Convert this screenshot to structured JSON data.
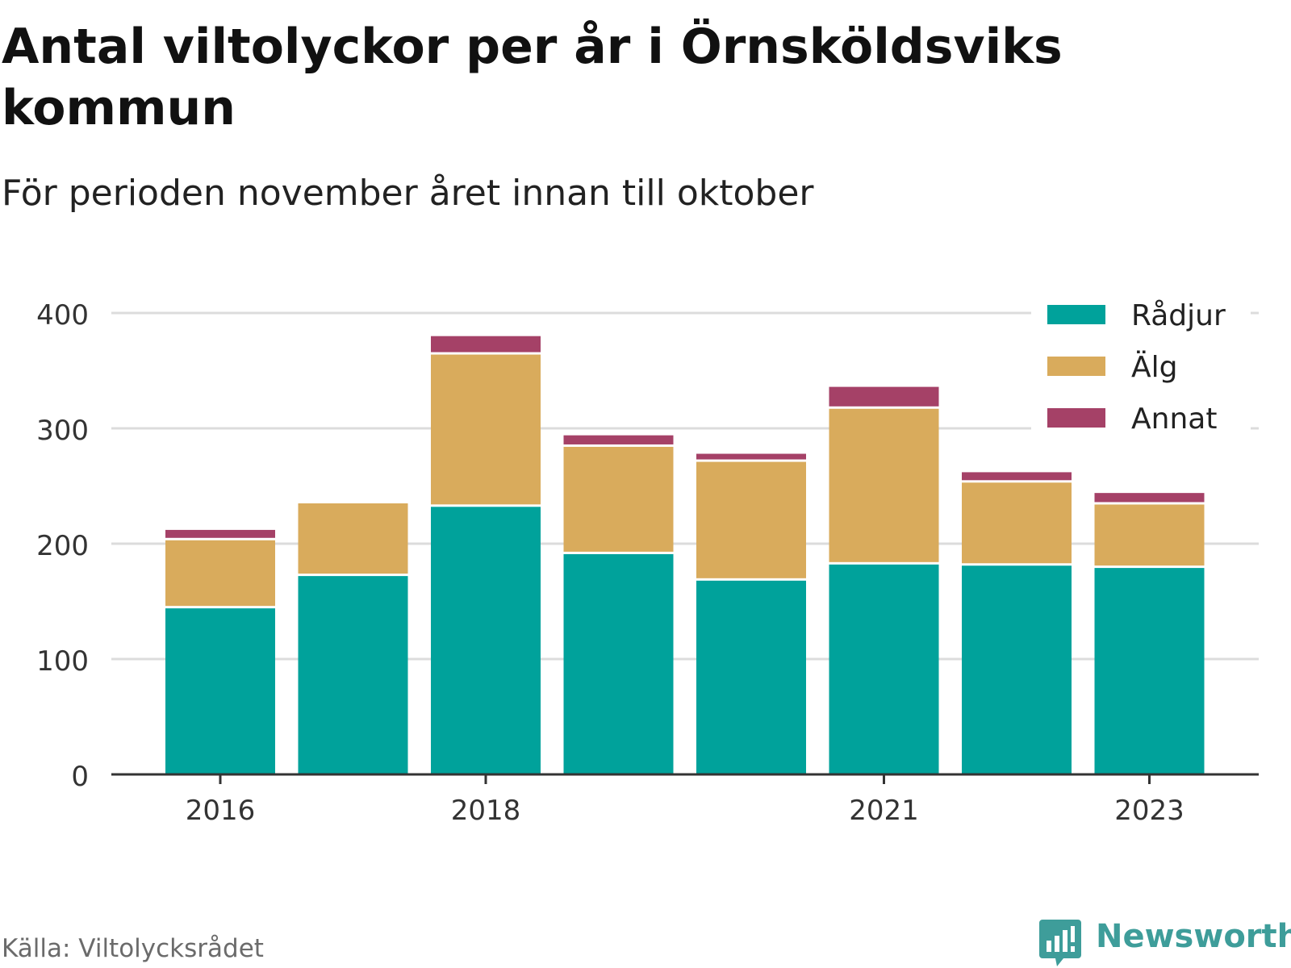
{
  "title": "Antal viltolyckor per år i Örnsköldsviks kommun",
  "subtitle": "För perioden november året innan till oktober",
  "source": "Källa: Viltolycksrådet",
  "brand": {
    "name": "Newsworthy",
    "icon": "bar-chart-badge-icon",
    "color": "#3e9d9a"
  },
  "chart_data": {
    "type": "bar",
    "stacked": true,
    "categories": [
      "2016",
      "2017",
      "2018",
      "2019",
      "2020",
      "2021",
      "2022",
      "2023"
    ],
    "x_tick_labels": [
      "2016",
      "",
      "2018",
      "",
      "",
      "2021",
      "",
      "2023"
    ],
    "series": [
      {
        "name": "Rådjur",
        "color": "#00a29b",
        "values": [
          145,
          173,
          233,
          192,
          169,
          183,
          182,
          180
        ]
      },
      {
        "name": "Älg",
        "color": "#d9ab5c",
        "values": [
          59,
          63,
          132,
          93,
          103,
          135,
          72,
          55
        ]
      },
      {
        "name": "Annat",
        "color": "#a54167",
        "values": [
          9,
          0,
          16,
          10,
          7,
          19,
          9,
          10
        ]
      }
    ],
    "ylim": [
      0,
      400
    ],
    "yticks": [
      0,
      100,
      200,
      300,
      400
    ],
    "xlabel": "",
    "ylabel": "",
    "grid": true,
    "legend_position": "top-right"
  }
}
